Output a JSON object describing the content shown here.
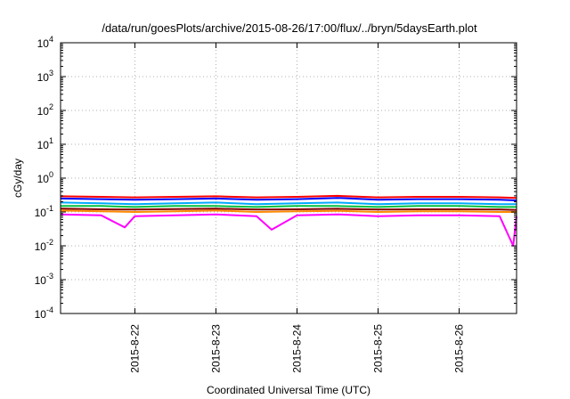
{
  "chart_data": {
    "type": "line",
    "title": "/data/run/goesPlots/archive/2015-08-26/17:00/flux/../bryn/5daysEarth.plot",
    "xlabel": "Coordinated Universal Time (UTC)",
    "ylabel": "cGy/day",
    "x_range": [
      "2015-08-21T02:00",
      "2015-08-26T17:00"
    ],
    "x_ticks": [
      "2015-8-22",
      "2015-8-23",
      "2015-8-24",
      "2015-8-25",
      "2015-8-26"
    ],
    "y_scale": "log",
    "ylim": [
      0.0001,
      10000
    ],
    "y_ticks": [
      {
        "base": "10",
        "exp": "-4"
      },
      {
        "base": "10",
        "exp": "-3"
      },
      {
        "base": "10",
        "exp": "-2"
      },
      {
        "base": "10",
        "exp": "-1"
      },
      {
        "base": "10",
        "exp": "0"
      },
      {
        "base": "10",
        "exp": "1"
      },
      {
        "base": "10",
        "exp": "2"
      },
      {
        "base": "10",
        "exp": "3"
      },
      {
        "base": "10",
        "exp": "4"
      }
    ],
    "grid": true,
    "legend": "none",
    "series": [
      {
        "color": "#ff0000",
        "x": [
          "2015-08-21T02:00",
          "2015-08-21T14:00",
          "2015-08-22T00:00",
          "2015-08-22T12:00",
          "2015-08-23T00:00",
          "2015-08-23T12:00",
          "2015-08-24T00:00",
          "2015-08-24T12:00",
          "2015-08-25T00:00",
          "2015-08-25T12:00",
          "2015-08-26T00:00",
          "2015-08-26T12:00",
          "2015-08-26T17:00"
        ],
        "values": [
          0.29,
          0.28,
          0.27,
          0.28,
          0.29,
          0.27,
          0.28,
          0.3,
          0.27,
          0.28,
          0.28,
          0.27,
          0.26
        ]
      },
      {
        "color": "#0000ff",
        "x": [
          "2015-08-21T02:00",
          "2015-08-21T14:00",
          "2015-08-22T00:00",
          "2015-08-22T12:00",
          "2015-08-23T00:00",
          "2015-08-23T12:00",
          "2015-08-24T00:00",
          "2015-08-24T12:00",
          "2015-08-25T00:00",
          "2015-08-25T12:00",
          "2015-08-26T00:00",
          "2015-08-26T12:00",
          "2015-08-26T17:00"
        ],
        "values": [
          0.25,
          0.24,
          0.23,
          0.24,
          0.25,
          0.23,
          0.24,
          0.26,
          0.23,
          0.24,
          0.24,
          0.23,
          0.22
        ]
      },
      {
        "color": "#00aaff",
        "x": [
          "2015-08-21T02:00",
          "2015-08-21T14:00",
          "2015-08-22T00:00",
          "2015-08-22T12:00",
          "2015-08-23T00:00",
          "2015-08-23T12:00",
          "2015-08-24T00:00",
          "2015-08-24T12:00",
          "2015-08-25T00:00",
          "2015-08-25T12:00",
          "2015-08-26T00:00",
          "2015-08-26T12:00",
          "2015-08-26T17:00"
        ],
        "values": [
          0.19,
          0.18,
          0.17,
          0.18,
          0.19,
          0.17,
          0.18,
          0.19,
          0.17,
          0.18,
          0.18,
          0.17,
          0.17
        ]
      },
      {
        "color": "#00c040",
        "x": [
          "2015-08-21T02:00",
          "2015-08-21T14:00",
          "2015-08-22T00:00",
          "2015-08-22T12:00",
          "2015-08-23T00:00",
          "2015-08-23T12:00",
          "2015-08-24T00:00",
          "2015-08-24T12:00",
          "2015-08-25T00:00",
          "2015-08-25T12:00",
          "2015-08-26T00:00",
          "2015-08-26T12:00",
          "2015-08-26T17:00"
        ],
        "values": [
          0.15,
          0.15,
          0.14,
          0.15,
          0.15,
          0.14,
          0.15,
          0.15,
          0.14,
          0.15,
          0.15,
          0.14,
          0.14
        ]
      },
      {
        "color": "#800000",
        "x": [
          "2015-08-21T02:00",
          "2015-08-21T14:00",
          "2015-08-22T00:00",
          "2015-08-22T12:00",
          "2015-08-23T00:00",
          "2015-08-23T12:00",
          "2015-08-24T00:00",
          "2015-08-24T12:00",
          "2015-08-25T00:00",
          "2015-08-25T12:00",
          "2015-08-26T00:00",
          "2015-08-26T12:00",
          "2015-08-26T17:00"
        ],
        "values": [
          0.125,
          0.12,
          0.118,
          0.122,
          0.125,
          0.118,
          0.12,
          0.124,
          0.118,
          0.12,
          0.12,
          0.118,
          0.115
        ]
      },
      {
        "color": "#ff8800",
        "x": [
          "2015-08-21T02:00",
          "2015-08-21T14:00",
          "2015-08-22T00:00",
          "2015-08-22T12:00",
          "2015-08-23T00:00",
          "2015-08-23T12:00",
          "2015-08-24T00:00",
          "2015-08-24T12:00",
          "2015-08-25T00:00",
          "2015-08-25T12:00",
          "2015-08-26T00:00",
          "2015-08-26T12:00",
          "2015-08-26T17:00"
        ],
        "values": [
          0.11,
          0.105,
          0.1,
          0.105,
          0.11,
          0.1,
          0.105,
          0.108,
          0.1,
          0.105,
          0.105,
          0.1,
          0.1
        ]
      },
      {
        "color": "#ff00ff",
        "x": [
          "2015-08-21T02:00",
          "2015-08-21T14:00",
          "2015-08-21T21:00",
          "2015-08-22T00:00",
          "2015-08-22T12:00",
          "2015-08-23T00:00",
          "2015-08-23T12:00",
          "2015-08-23T16:30",
          "2015-08-24T00:00",
          "2015-08-24T12:00",
          "2015-08-25T00:00",
          "2015-08-25T12:00",
          "2015-08-26T00:00",
          "2015-08-26T12:00",
          "2015-08-26T16:00",
          "2015-08-26T17:00"
        ],
        "values": [
          0.085,
          0.08,
          0.035,
          0.075,
          0.08,
          0.085,
          0.075,
          0.03,
          0.08,
          0.085,
          0.075,
          0.08,
          0.08,
          0.075,
          0.01,
          0.075
        ]
      }
    ]
  }
}
